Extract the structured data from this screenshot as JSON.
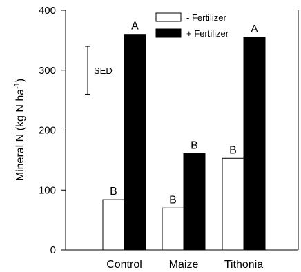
{
  "chart_data": {
    "type": "bar",
    "categories": [
      "Control",
      "Maize",
      "Tithonia"
    ],
    "series": [
      {
        "name": "- Fertilizer",
        "values": [
          84,
          70,
          153
        ],
        "color": "#ffffff",
        "letters": [
          "B",
          "B",
          "B"
        ]
      },
      {
        "name": "+ Fertilizer",
        "values": [
          360,
          161,
          355
        ],
        "color": "#000000",
        "letters": [
          "A",
          "B",
          "A"
        ]
      }
    ],
    "ylabel": "Mineral N (kg N ha",
    "ylabel_superscript": "-1",
    "ylabel_close": ")",
    "ylim": [
      0,
      400
    ],
    "yticks": [
      0,
      100,
      200,
      300,
      400
    ],
    "grid": false,
    "legend_position": "top-right",
    "sed": {
      "label": "SED",
      "low": 260,
      "high": 340
    }
  }
}
